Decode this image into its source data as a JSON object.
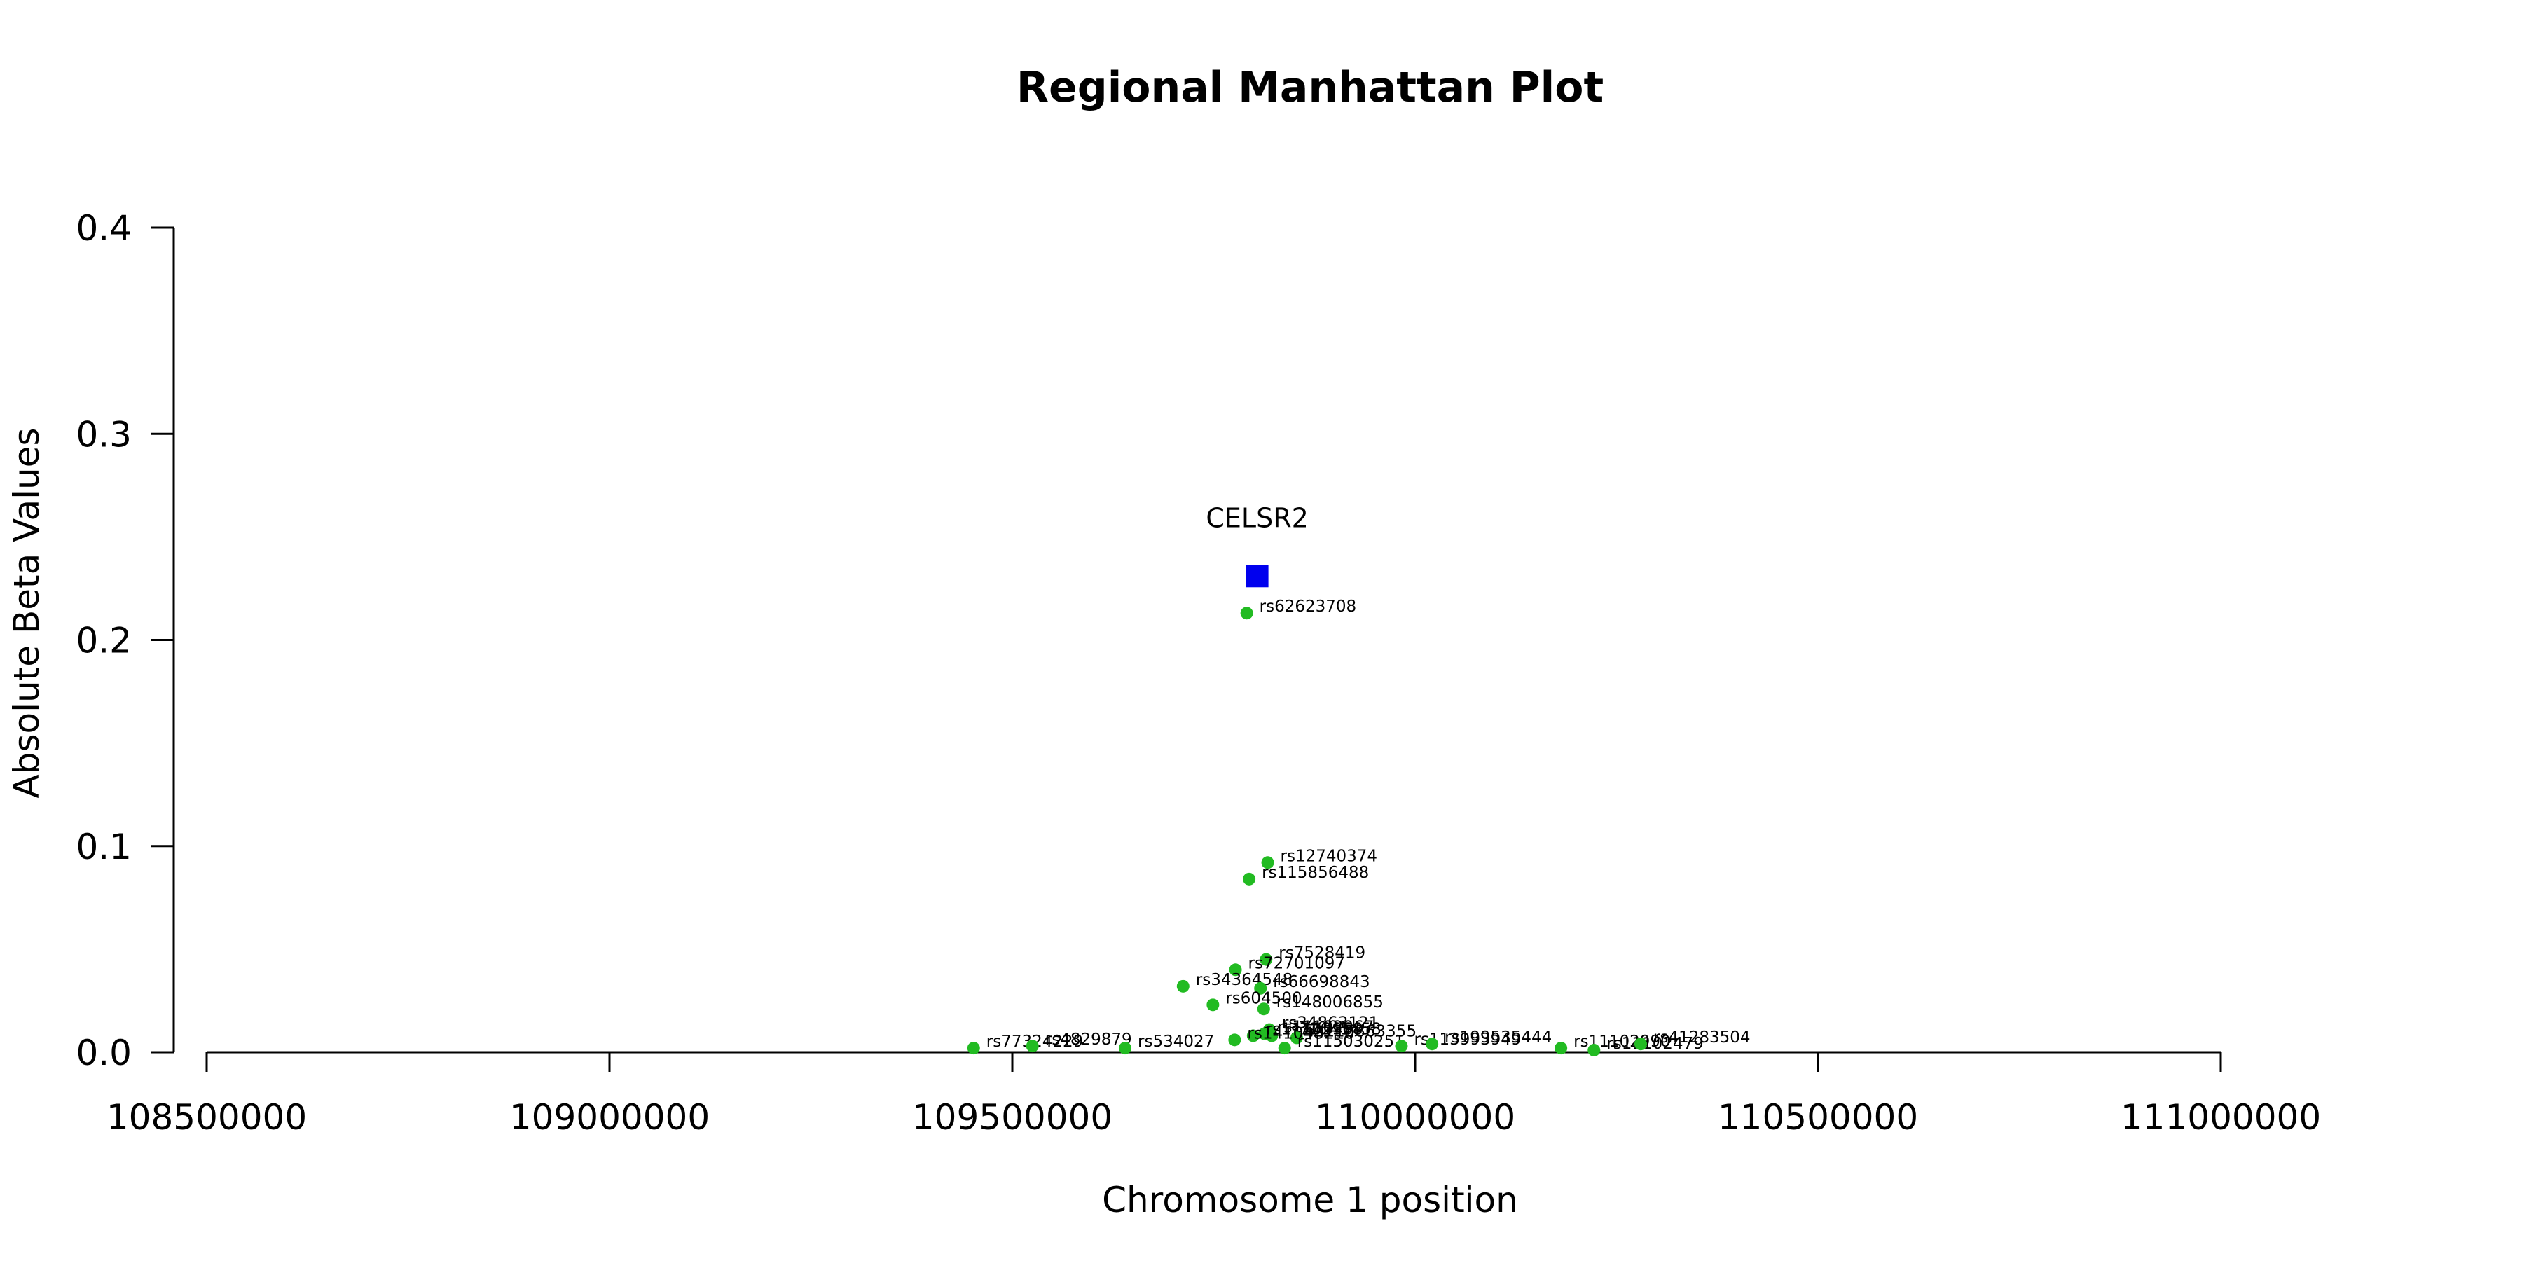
{
  "chart_data": {
    "type": "scatter",
    "title": "Regional Manhattan Plot",
    "xlabel": "Chromosome 1 position",
    "ylabel": "Absolute Beta Values",
    "xlim": [
      108500000,
      111000000
    ],
    "ylim": [
      0,
      0.4
    ],
    "x_ticks": [
      108500000,
      109000000,
      109500000,
      110000000,
      110500000,
      111000000
    ],
    "x_tick_labels": [
      "108500000",
      "109000000",
      "109500000",
      "110000000",
      "110500000",
      "111000000"
    ],
    "y_ticks": [
      0,
      0.1,
      0.2,
      0.3,
      0.4
    ],
    "y_tick_labels": [
      "0.0",
      "0.1",
      "0.2",
      "0.3",
      "0.4"
    ],
    "grid": false,
    "legend": "none",
    "colors": {
      "snp": "#22bb22",
      "gene": "#0000ee",
      "axis": "#000000"
    },
    "gene": {
      "label": "CELSR2",
      "x": 109804000,
      "y": 0.231,
      "marker": "square"
    },
    "snps": [
      {
        "label": "rs62623708",
        "x": 109791000,
        "y": 0.213
      },
      {
        "label": "rs12740374",
        "x": 109817000,
        "y": 0.092
      },
      {
        "label": "rs115856488",
        "x": 109794000,
        "y": 0.084
      },
      {
        "label": "rs7528419",
        "x": 109815000,
        "y": 0.045
      },
      {
        "label": "rs72701097",
        "x": 109777000,
        "y": 0.04
      },
      {
        "label": "rs34364548",
        "x": 109712000,
        "y": 0.032
      },
      {
        "label": "rs66698843",
        "x": 109808000,
        "y": 0.031
      },
      {
        "label": "rs604500",
        "x": 109749000,
        "y": 0.023
      },
      {
        "label": "rs148006855",
        "x": 109812000,
        "y": 0.021
      },
      {
        "label": "rs34863121",
        "x": 109819000,
        "y": 0.011
      },
      {
        "label": "rs11102967",
        "x": 109813000,
        "y": 0.009
      },
      {
        "label": "rs72645458",
        "x": 109822000,
        "y": 0.008
      },
      {
        "label": "rs11102968",
        "x": 109799000,
        "y": 0.008
      },
      {
        "label": "rs115863355",
        "x": 109853000,
        "y": 0.007
      },
      {
        "label": "rs141048210",
        "x": 109776000,
        "y": 0.006
      },
      {
        "label": "rs115030251",
        "x": 109838000,
        "y": 0.002
      },
      {
        "label": "rs113993949",
        "x": 109983000,
        "y": 0.003
      },
      {
        "label": "rs199535444",
        "x": 110021000,
        "y": 0.004
      },
      {
        "label": "rs77324229",
        "x": 109452000,
        "y": 0.002
      },
      {
        "label": "rs4829879",
        "x": 109525000,
        "y": 0.003
      },
      {
        "label": "rs534027",
        "x": 109640000,
        "y": 0.002
      },
      {
        "label": "rs11102990",
        "x": 110181000,
        "y": 0.002
      },
      {
        "label": "rs11102479",
        "x": 110222000,
        "y": 0.001
      },
      {
        "label": "rs41283504",
        "x": 110280000,
        "y": 0.004
      }
    ]
  }
}
